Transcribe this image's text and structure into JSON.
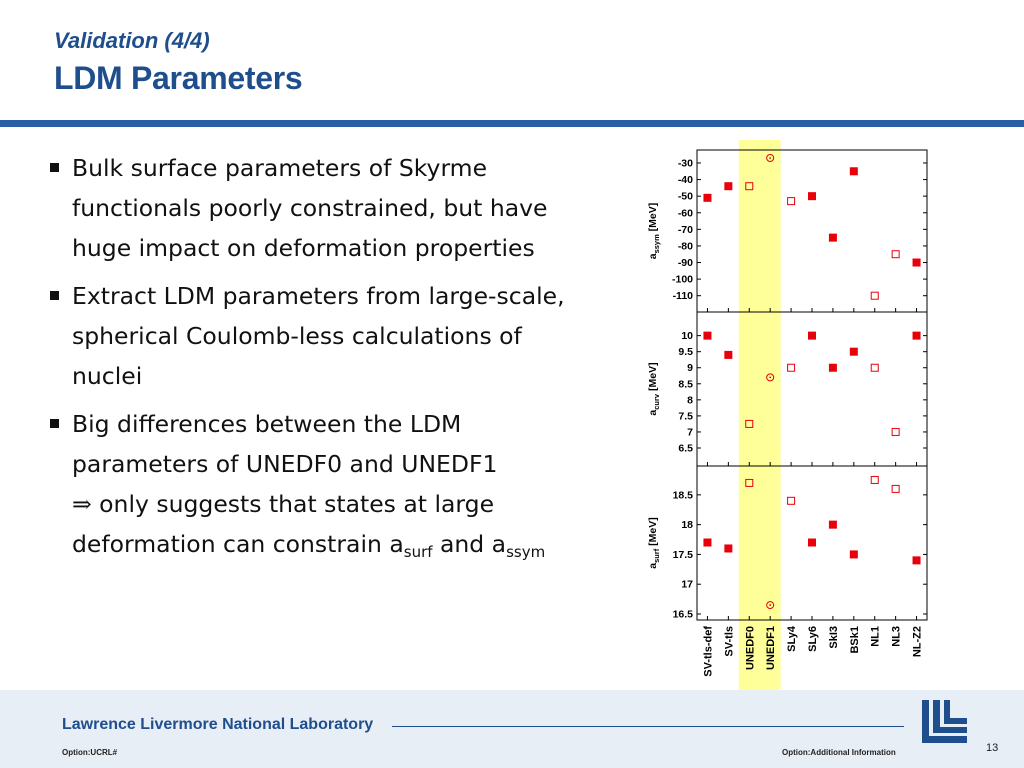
{
  "header": {
    "subtitle": "Validation (4/4)",
    "title": "LDM Parameters"
  },
  "bullets": [
    {
      "text": "Bulk surface parameters of Skyrme functionals poorly constrained, but have huge impact on deformation properties"
    },
    {
      "text": "Extract LDM parameters from large-scale, spherical Coulomb-less calculations of nuclei"
    },
    {
      "text_1": "Big differences between the LDM parameters of UNEDF0 and UNEDF1",
      "implies_symbol": "⇒",
      "text_2": " only suggests that states at large deformation can constrain a",
      "sub_1": "surf",
      "text_3": " and a",
      "sub_2": "ssym"
    }
  ],
  "chart_data": {
    "type": "scatter",
    "categories": [
      "SV-tls-def",
      "SV-tls",
      "UNEDF0",
      "UNEDF1",
      "SLy4",
      "SLy6",
      "SkI3",
      "BSk1",
      "NL1",
      "NL3",
      "NL-Z2"
    ],
    "highlight_categories": [
      "UNEDF0",
      "UNEDF1"
    ],
    "marker_styles": [
      "filled-square",
      "filled-square",
      "open-square",
      "open-circle",
      "open-square",
      "filled-square",
      "filled-square",
      "filled-square",
      "open-square",
      "open-square",
      "filled-square"
    ],
    "colors": {
      "marker": "#e8000b",
      "highlight": "#ffff99",
      "axis": "#000000"
    },
    "panels": [
      {
        "ylabel": "a",
        "ylabel_sub": "ssym",
        "ylabel_unit": "[MeV]",
        "ylim": [
          -115,
          -27
        ],
        "yticks": [
          -30,
          -40,
          -50,
          -60,
          -70,
          -80,
          -90,
          -100,
          -110
        ],
        "values": [
          -51,
          -44,
          -44,
          -27,
          -53,
          -50,
          -75,
          -35,
          -110,
          -85,
          -90
        ]
      },
      {
        "ylabel": "a",
        "ylabel_sub": "curv",
        "ylabel_unit": "[MeV]",
        "ylim": [
          6.5,
          10.3
        ],
        "yticks": [
          10,
          9.5,
          9,
          8.5,
          8,
          7.5,
          7,
          6.5
        ],
        "values": [
          10,
          9.4,
          7.25,
          8.7,
          9,
          10,
          9,
          9.5,
          9,
          7,
          10
        ]
      },
      {
        "ylabel": "a",
        "ylabel_sub": "surf",
        "ylabel_unit": "[MeV]",
        "ylim": [
          16.5,
          18.85
        ],
        "yticks": [
          18.5,
          18,
          17.5,
          17,
          16.5
        ],
        "values": [
          17.7,
          17.6,
          18.7,
          16.65,
          18.4,
          17.7,
          18,
          17.5,
          18.75,
          18.6,
          17.4
        ]
      }
    ]
  },
  "footer": {
    "lab": "Lawrence Livermore National Laboratory",
    "option_left": "Option:UCRL#",
    "option_right": "Option:Additional Information",
    "page": "13"
  }
}
